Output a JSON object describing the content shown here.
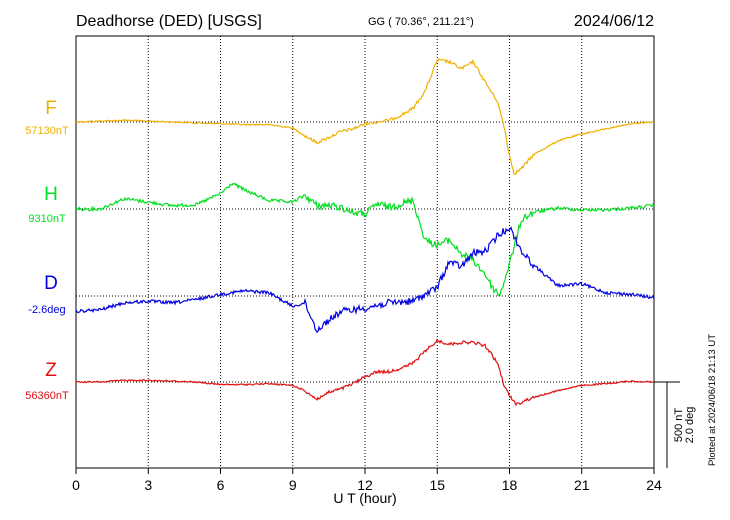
{
  "header": {
    "station": "Deadhorse (DED)  [USGS]",
    "coords": "GG ( 70.36°, 211.21°)",
    "date": "2024/06/12"
  },
  "footer": {
    "plotted": "Plotted at 2024/06/18 21:13 UT"
  },
  "scale": {
    "nt": "500 nT",
    "deg": "2.0 deg"
  },
  "chart_data": {
    "type": "line",
    "title": "Deadhorse (DED)  [USGS]",
    "xlabel": "U T (hour)",
    "ylabel": "",
    "xlim": [
      0,
      24
    ],
    "x_ticks": [
      "0",
      "3",
      "6",
      "9",
      "12",
      "15",
      "18",
      "21",
      "24"
    ],
    "grid": true,
    "units_per_division": "500 nT / 2.0 deg",
    "series": [
      {
        "name": "F",
        "baseline_label": "57130nT",
        "color": "#f0b000",
        "unit": "nT",
        "points": [
          [
            0,
            0
          ],
          [
            1,
            5
          ],
          [
            2,
            10
          ],
          [
            3,
            5
          ],
          [
            4,
            0
          ],
          [
            5,
            -5
          ],
          [
            6,
            -10
          ],
          [
            7,
            -15
          ],
          [
            8,
            -15
          ],
          [
            9,
            -35
          ],
          [
            9.5,
            -80
          ],
          [
            10,
            -120
          ],
          [
            10.5,
            -90
          ],
          [
            11,
            -55
          ],
          [
            11.5,
            -40
          ],
          [
            12,
            -10
          ],
          [
            13,
            10
          ],
          [
            13.5,
            40
          ],
          [
            14,
            80
          ],
          [
            14.5,
            180
          ],
          [
            15,
            360
          ],
          [
            15.5,
            350
          ],
          [
            16,
            310
          ],
          [
            16.5,
            350
          ],
          [
            17,
            230
          ],
          [
            17.5,
            120
          ],
          [
            17.8,
            -40
          ],
          [
            18,
            -200
          ],
          [
            18.2,
            -300
          ],
          [
            18.5,
            -270
          ],
          [
            19,
            -190
          ],
          [
            20,
            -110
          ],
          [
            21,
            -70
          ],
          [
            22,
            -40
          ],
          [
            23,
            -10
          ],
          [
            24,
            0
          ]
        ]
      },
      {
        "name": "H",
        "baseline_label": "9310nT",
        "color": "#00e020",
        "unit": "nT",
        "points": [
          [
            0,
            0
          ],
          [
            1,
            0
          ],
          [
            1.5,
            30
          ],
          [
            2,
            60
          ],
          [
            3,
            40
          ],
          [
            4,
            20
          ],
          [
            5,
            25
          ],
          [
            6,
            90
          ],
          [
            6.5,
            150
          ],
          [
            7,
            110
          ],
          [
            8,
            50
          ],
          [
            9,
            40
          ],
          [
            9.5,
            80
          ],
          [
            10,
            20
          ],
          [
            10.5,
            20
          ],
          [
            11,
            10
          ],
          [
            11.5,
            -20
          ],
          [
            12,
            -30
          ],
          [
            12.5,
            30
          ],
          [
            13,
            10
          ],
          [
            13.5,
            30
          ],
          [
            14,
            50
          ],
          [
            14.2,
            -50
          ],
          [
            14.5,
            -180
          ],
          [
            15,
            -210
          ],
          [
            15.5,
            -180
          ],
          [
            16,
            -260
          ],
          [
            16.5,
            -300
          ],
          [
            17,
            -380
          ],
          [
            17.3,
            -460
          ],
          [
            17.6,
            -500
          ],
          [
            18,
            -320
          ],
          [
            18.5,
            -60
          ],
          [
            19,
            -20
          ],
          [
            20,
            5
          ],
          [
            21,
            -5
          ],
          [
            22,
            -5
          ],
          [
            23,
            5
          ],
          [
            24,
            20
          ]
        ]
      },
      {
        "name": "D",
        "baseline_label": "-2.6deg",
        "color": "#0000e0",
        "unit": "deg",
        "points": [
          [
            0,
            -0.36
          ],
          [
            1,
            -0.32
          ],
          [
            2,
            -0.16
          ],
          [
            3,
            -0.12
          ],
          [
            4,
            -0.16
          ],
          [
            5,
            -0.08
          ],
          [
            6,
            0.04
          ],
          [
            7,
            0.12
          ],
          [
            8,
            0.08
          ],
          [
            9,
            -0.24
          ],
          [
            9.5,
            -0.16
          ],
          [
            10,
            -0.8
          ],
          [
            10.5,
            -0.56
          ],
          [
            11,
            -0.36
          ],
          [
            11.5,
            -0.32
          ],
          [
            12,
            -0.28
          ],
          [
            13,
            -0.16
          ],
          [
            14,
            -0.12
          ],
          [
            15,
            0.2
          ],
          [
            15.5,
            0.8
          ],
          [
            16,
            0.68
          ],
          [
            16.5,
            1.0
          ],
          [
            17,
            1.04
          ],
          [
            17.5,
            1.4
          ],
          [
            18,
            1.6
          ],
          [
            18.5,
            1.04
          ],
          [
            19,
            0.72
          ],
          [
            20,
            0.24
          ],
          [
            21,
            0.28
          ],
          [
            22,
            0.08
          ],
          [
            23,
            0.04
          ],
          [
            24,
            -0.04
          ]
        ]
      },
      {
        "name": "Z",
        "baseline_label": "56360nT",
        "color": "#e01010",
        "unit": "nT",
        "points": [
          [
            0,
            0
          ],
          [
            1,
            0
          ],
          [
            2,
            10
          ],
          [
            3,
            10
          ],
          [
            4,
            5
          ],
          [
            5,
            0
          ],
          [
            6,
            -15
          ],
          [
            7,
            -15
          ],
          [
            8,
            -10
          ],
          [
            9,
            -20
          ],
          [
            9.5,
            -50
          ],
          [
            10,
            -100
          ],
          [
            10.5,
            -60
          ],
          [
            11,
            -40
          ],
          [
            11.5,
            -10
          ],
          [
            12,
            30
          ],
          [
            12.5,
            60
          ],
          [
            13,
            60
          ],
          [
            13.5,
            80
          ],
          [
            14,
            110
          ],
          [
            14.5,
            180
          ],
          [
            15,
            240
          ],
          [
            15.5,
            220
          ],
          [
            16,
            230
          ],
          [
            16.5,
            230
          ],
          [
            17,
            210
          ],
          [
            17.5,
            110
          ],
          [
            17.8,
            -30
          ],
          [
            18,
            -80
          ],
          [
            18.3,
            -130
          ],
          [
            18.6,
            -110
          ],
          [
            19,
            -90
          ],
          [
            20,
            -50
          ],
          [
            21,
            -20
          ],
          [
            22,
            -10
          ],
          [
            23,
            5
          ],
          [
            24,
            0
          ]
        ]
      }
    ]
  }
}
